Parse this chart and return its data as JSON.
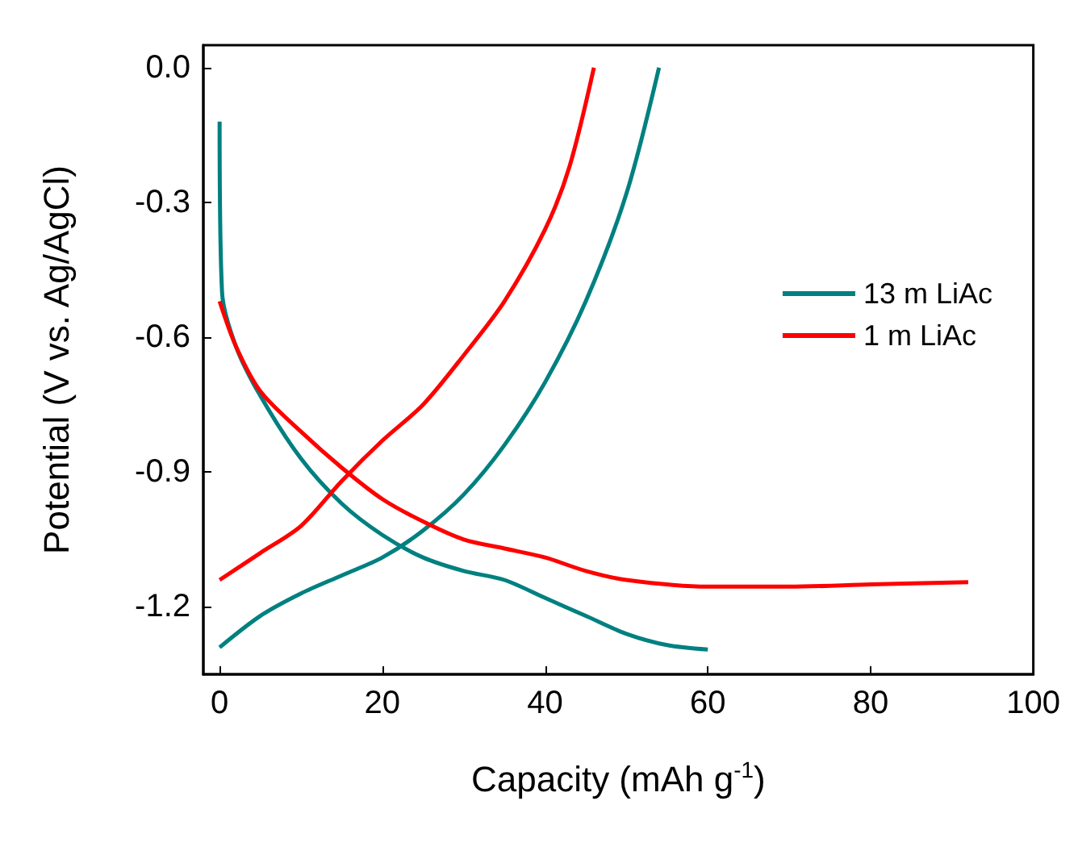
{
  "chart_data": {
    "type": "line",
    "xlabel": "Capacity (mAh g$^{-1}$)",
    "ylabel": "Potential (V vs. Ag/AgCl)",
    "xlim": [
      -2,
      100
    ],
    "xticks": [
      0,
      20,
      40,
      60,
      80,
      100
    ],
    "ylim": [
      -1.35,
      0.05
    ],
    "yticks": [
      {
        "value": 0,
        "label": "0.0"
      },
      {
        "value": -0.3,
        "label": "-0.3"
      },
      {
        "value": -0.6,
        "label": "-0.6"
      },
      {
        "value": -0.9,
        "label": "-0.9"
      },
      {
        "value": -1.2,
        "label": "-1.2"
      }
    ],
    "legend": "right",
    "grid": false,
    "marker": "none",
    "line_style": "solid",
    "series": [
      {
        "name": "13 m LiAc",
        "color": "#008080",
        "x": [
          0,
          5,
          10,
          15,
          20,
          25,
          30,
          35,
          40,
          45,
          50,
          54
        ],
        "values": [
          -1.29,
          -1.22,
          -1.17,
          -1.13,
          -1.09,
          -1.03,
          -0.95,
          -0.84,
          -0.7,
          -0.52,
          -0.28,
          0
        ]
      },
      {
        "color": "#008080",
        "x": [
          0,
          0.3,
          2,
          5,
          10,
          15,
          20,
          25,
          30,
          35,
          40,
          45,
          50,
          55,
          60
        ],
        "values": [
          -0.12,
          -0.5,
          -0.62,
          -0.73,
          -0.87,
          -0.97,
          -1.04,
          -1.09,
          -1.12,
          -1.14,
          -1.18,
          -1.22,
          -1.26,
          -1.285,
          -1.295
        ]
      },
      {
        "name": "1 m LiAc",
        "color": "#ff0000",
        "x": [
          0,
          5,
          10,
          15,
          20,
          25,
          30,
          35,
          40,
          43,
          46
        ],
        "values": [
          -1.14,
          -1.08,
          -1.02,
          -0.92,
          -0.83,
          -0.75,
          -0.64,
          -0.52,
          -0.36,
          -0.22,
          0
        ]
      },
      {
        "color": "#ff0000",
        "x": [
          0,
          2,
          5,
          10,
          15,
          20,
          25,
          30,
          35,
          40,
          45,
          50,
          60,
          70,
          80,
          92
        ],
        "values": [
          -0.52,
          -0.62,
          -0.72,
          -0.81,
          -0.89,
          -0.96,
          -1.01,
          -1.05,
          -1.07,
          -1.09,
          -1.12,
          -1.14,
          -1.155,
          -1.155,
          -1.15,
          -1.145
        ]
      }
    ]
  }
}
